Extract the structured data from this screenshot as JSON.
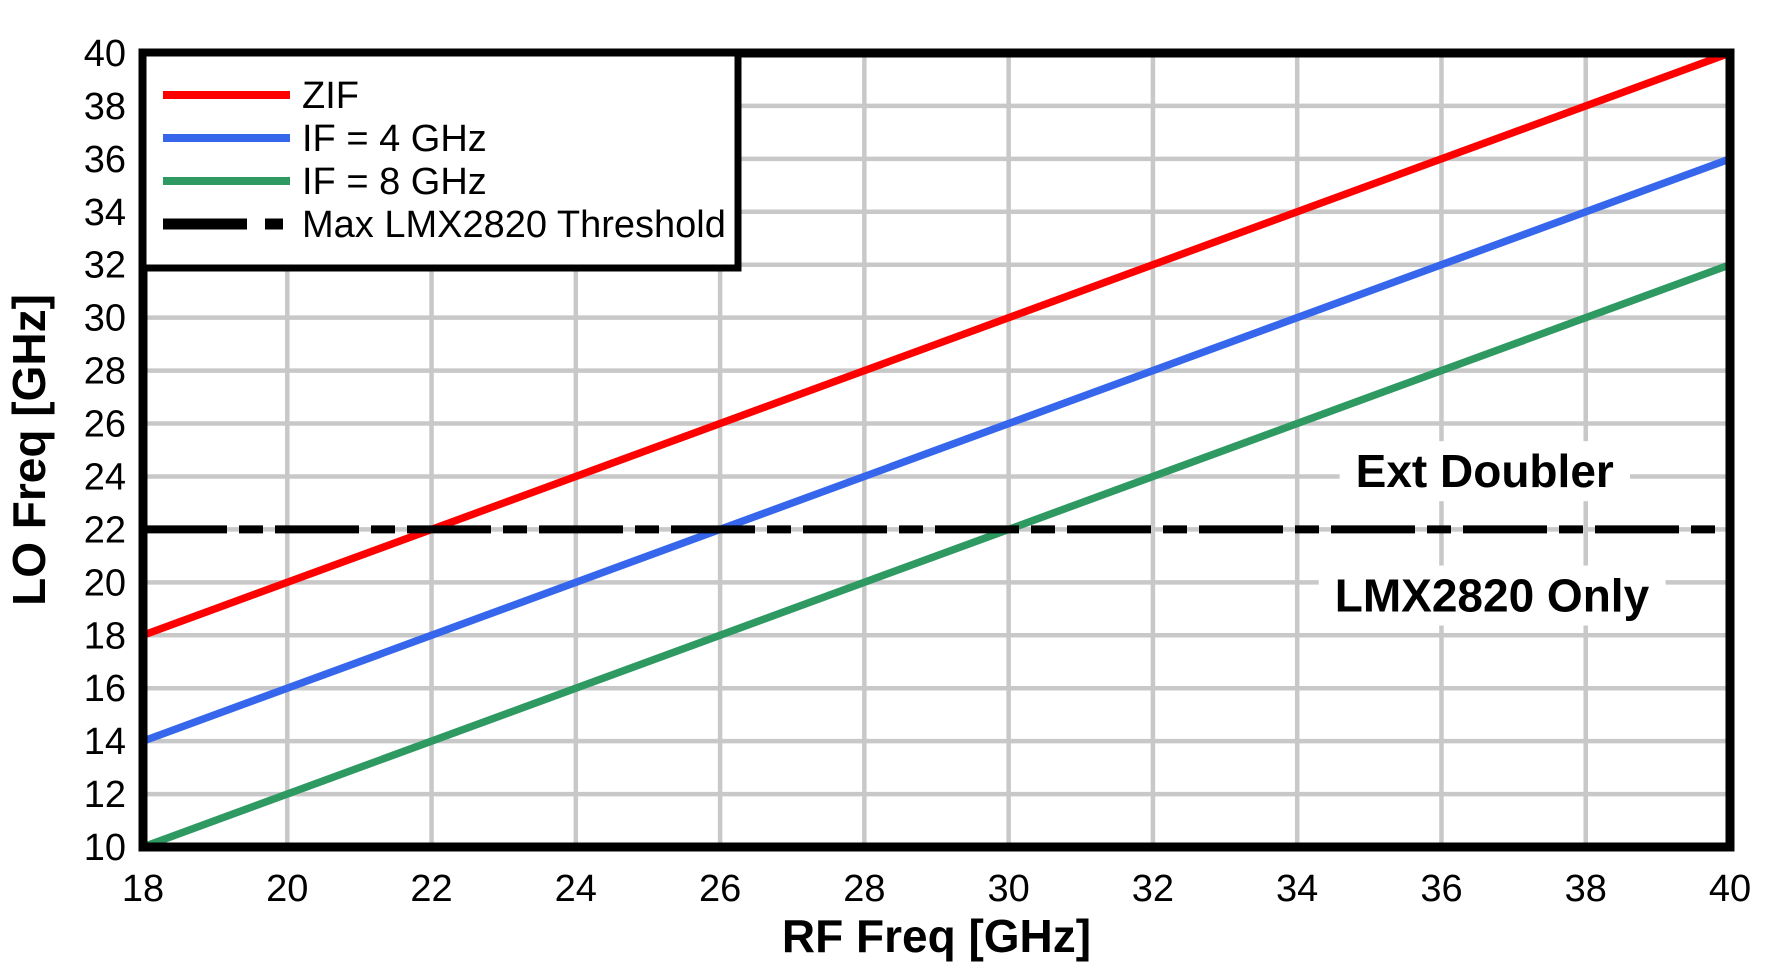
{
  "chart_data": {
    "type": "line",
    "title": "",
    "xlabel": "RF Freq [GHz]",
    "ylabel": "LO Freq [GHz]",
    "xlim": [
      18,
      40
    ],
    "ylim": [
      10,
      40
    ],
    "x_ticks": [
      18,
      20,
      22,
      24,
      26,
      28,
      30,
      32,
      34,
      36,
      38,
      40
    ],
    "y_ticks": [
      10,
      12,
      14,
      16,
      18,
      20,
      22,
      24,
      26,
      28,
      30,
      32,
      34,
      36,
      38,
      40
    ],
    "grid": true,
    "legend_position": "top-left",
    "series": [
      {
        "name": "ZIF",
        "color": "#FF0000",
        "style": "solid",
        "x": [
          18,
          40
        ],
        "y": [
          18,
          40
        ]
      },
      {
        "name": "IF = 4 GHz",
        "color": "#3566EC",
        "style": "solid",
        "x": [
          18,
          40
        ],
        "y": [
          14,
          36
        ]
      },
      {
        "name": "IF = 8 GHz",
        "color": "#2F9962",
        "style": "solid",
        "x": [
          18,
          40
        ],
        "y": [
          10,
          32
        ]
      },
      {
        "name": "Max LMX2820 Threshold",
        "color": "#000000",
        "style": "dash-dot",
        "x": [
          18,
          40
        ],
        "y": [
          22,
          22
        ]
      }
    ],
    "annotations": [
      {
        "text": "Ext Doubler",
        "x": 36.6,
        "y": 24.2
      },
      {
        "text": "LMX2820 Only",
        "x": 36.7,
        "y": 19.5
      }
    ],
    "colors": {
      "grid": "#C8C8C8",
      "axis": "#000000",
      "background": "#FFFFFF",
      "text": "#000000"
    }
  }
}
